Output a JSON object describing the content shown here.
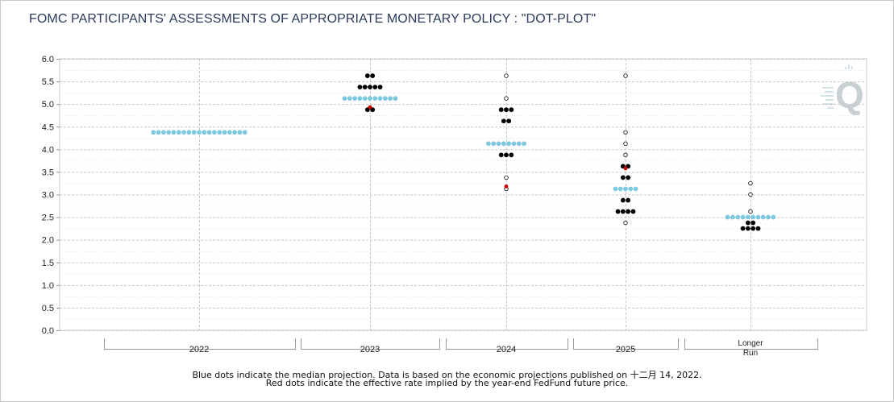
{
  "title": "FOMC PARTICIPANTS' ASSESSMENTS OF APPROPRIATE MONETARY POLICY : \"DOT-PLOT\"",
  "footnotes": {
    "line1": "Blue dots indicate the median projection. Data is based on the economic projections published on 十二月 14, 2022.",
    "line2": "Red dots indicate the effective rate implied by the year-end FedFund future price."
  },
  "chart_data": {
    "type": "scatter",
    "ylim": [
      0,
      6
    ],
    "ystep": 0.5,
    "ytick_labels": [
      "0.0",
      "0.5",
      "1.0",
      "1.5",
      "2.0",
      "2.5",
      "3.0",
      "3.5",
      "4.0",
      "4.5",
      "5.0",
      "5.5",
      "6.0"
    ],
    "grid": true,
    "categories": [
      "2022",
      "2023",
      "2024",
      "2025",
      "Longer Run"
    ],
    "category_labels": [
      [
        "2022"
      ],
      [
        "2023"
      ],
      [
        "2024"
      ],
      [
        "2025"
      ],
      [
        "Longer",
        "Run"
      ]
    ],
    "colors": {
      "participant": "#000000",
      "median": "#7ec8e0",
      "future": "#cc0000"
    },
    "participants": [
      {
        "category": "2022",
        "points": []
      },
      {
        "category": "2023",
        "points": [
          {
            "y": 5.625,
            "n": 2
          },
          {
            "y": 5.375,
            "n": 5
          },
          {
            "y": 4.875,
            "n": 2
          }
        ]
      },
      {
        "category": "2024",
        "points": [
          {
            "y": 5.625,
            "n": 1
          },
          {
            "y": 5.125,
            "n": 1
          },
          {
            "y": 4.875,
            "n": 3
          },
          {
            "y": 4.625,
            "n": 2
          },
          {
            "y": 3.875,
            "n": 3
          },
          {
            "y": 3.375,
            "n": 1
          },
          {
            "y": 3.125,
            "n": 1
          }
        ]
      },
      {
        "category": "2025",
        "points": [
          {
            "y": 5.625,
            "n": 1
          },
          {
            "y": 4.375,
            "n": 1
          },
          {
            "y": 4.125,
            "n": 1
          },
          {
            "y": 3.875,
            "n": 1
          },
          {
            "y": 3.625,
            "n": 2
          },
          {
            "y": 3.375,
            "n": 2
          },
          {
            "y": 2.875,
            "n": 2
          },
          {
            "y": 2.625,
            "n": 4
          },
          {
            "y": 2.375,
            "n": 1
          }
        ]
      },
      {
        "category": "Longer Run",
        "points": [
          {
            "y": 3.25,
            "n": 1
          },
          {
            "y": 3.0,
            "n": 1
          },
          {
            "y": 2.625,
            "n": 1
          },
          {
            "y": 2.375,
            "n": 2
          },
          {
            "y": 2.25,
            "n": 4
          }
        ]
      }
    ],
    "medians": [
      {
        "category": "2022",
        "y": 4.375,
        "n": 19
      },
      {
        "category": "2023",
        "y": 5.125,
        "n": 11
      },
      {
        "category": "2024",
        "y": 4.125,
        "n": 8
      },
      {
        "category": "2025",
        "y": 3.125,
        "n": 5
      },
      {
        "category": "Longer Run",
        "y": 2.5,
        "n": 10
      }
    ],
    "futures": [
      {
        "category": "2023",
        "y": 4.93
      },
      {
        "category": "2024",
        "y": 3.18
      },
      {
        "category": "2025",
        "y": 3.58
      }
    ]
  }
}
